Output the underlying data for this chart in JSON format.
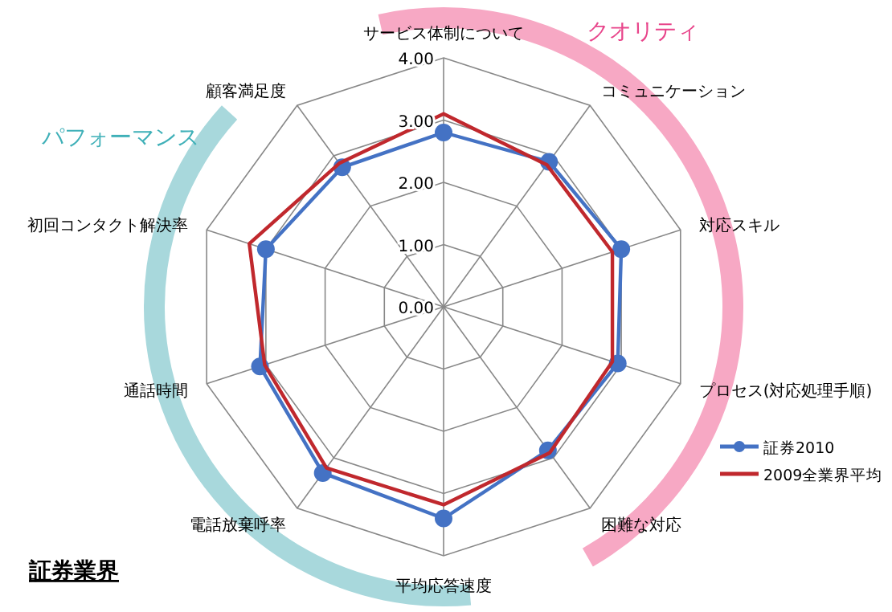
{
  "chart_data": {
    "type": "radar",
    "title": "証券業界",
    "categories": [
      "サービス体制について",
      "コミュニケーション",
      "対応スキル",
      "プロセス(対応処理手順)",
      "困難な対応",
      "平均応答速度",
      "電話放棄呼率",
      "通話時間",
      "初回コンタクト解決率",
      "顧客満足度"
    ],
    "series": [
      {
        "name": "証券2010",
        "color": "#4472c4",
        "marker": "circle",
        "values": [
          2.8,
          2.88,
          3.0,
          2.94,
          2.85,
          3.4,
          3.3,
          3.1,
          3.0,
          2.77
        ]
      },
      {
        "name": "2009全業界平均",
        "color": "#c0282d",
        "marker": "none",
        "values": [
          3.1,
          2.82,
          2.85,
          2.85,
          2.9,
          3.18,
          3.2,
          3.02,
          3.28,
          2.85
        ]
      }
    ],
    "ylim": [
      0,
      4
    ],
    "yticks": [
      {
        "value": 0,
        "label": "0.00"
      },
      {
        "value": 1,
        "label": "1.00"
      },
      {
        "value": 2,
        "label": "2.00"
      },
      {
        "value": 3,
        "label": "3.00"
      },
      {
        "value": 4,
        "label": "4.00"
      }
    ],
    "grid": true,
    "legend": "right",
    "annotations": [
      "クオリティ",
      "パフォーマンス"
    ]
  }
}
